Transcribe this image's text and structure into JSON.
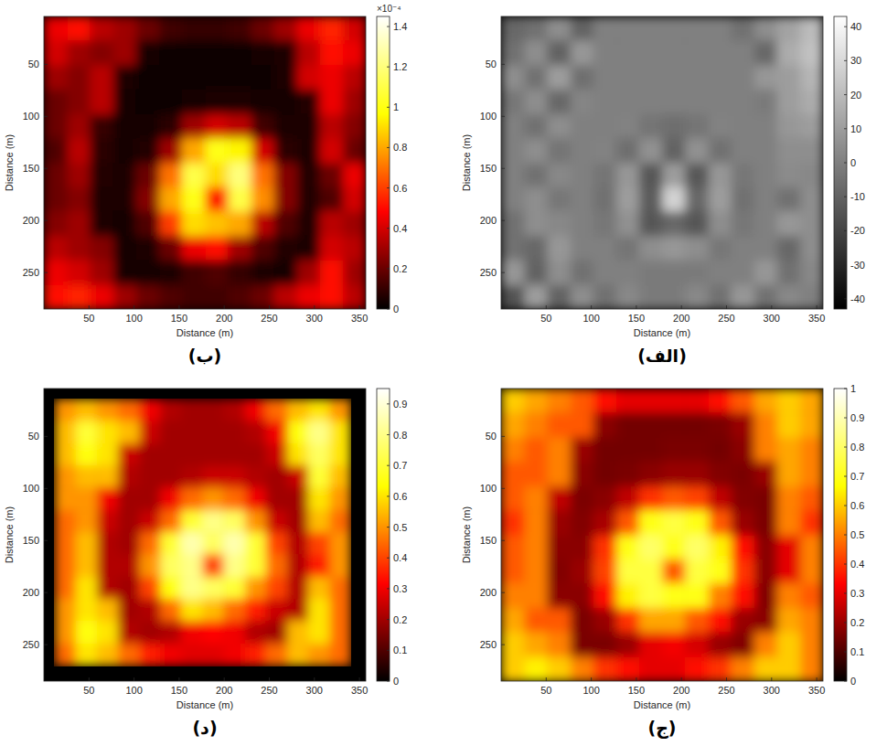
{
  "chart_data": [
    {
      "type": "heatmap",
      "title": "(الف)",
      "x_label": "Distance (m)",
      "y_label": "Distance (m)",
      "xlim": [
        0,
        357
      ],
      "ylim": [
        4,
        285
      ],
      "xticks": [
        50,
        100,
        150,
        200,
        250,
        300,
        350
      ],
      "yticks": [
        50,
        100,
        150,
        200,
        250
      ],
      "x_edges": [
        0,
        26,
        51,
        77,
        102,
        128,
        153,
        179,
        204,
        230,
        255,
        281,
        306,
        332,
        357
      ],
      "y_edges": [
        4,
        27,
        51,
        74,
        98,
        121,
        145,
        168,
        191,
        215,
        238,
        262,
        285
      ],
      "cells": [
        [
          -8,
          -5,
          5,
          -10,
          0,
          0,
          0,
          0,
          0,
          0,
          -5,
          5,
          12,
          20
        ],
        [
          -5,
          5,
          -10,
          8,
          0,
          0,
          0,
          0,
          0,
          0,
          0,
          -8,
          15,
          22
        ],
        [
          5,
          -5,
          10,
          -6,
          0,
          0,
          0,
          0,
          0,
          0,
          0,
          8,
          10,
          18
        ],
        [
          -3,
          5,
          -8,
          2,
          0,
          0,
          0,
          0,
          0,
          0,
          0,
          -2,
          10,
          15
        ],
        [
          0,
          -5,
          5,
          0,
          0,
          1,
          -4,
          -6,
          -4,
          1,
          0,
          0,
          8,
          10
        ],
        [
          0,
          5,
          -4,
          0,
          1,
          -6,
          6,
          -10,
          6,
          -5,
          0,
          0,
          5,
          5
        ],
        [
          0,
          -5,
          3,
          0,
          -4,
          8,
          -14,
          10,
          -14,
          8,
          -3,
          0,
          4,
          3
        ],
        [
          0,
          5,
          -3,
          0,
          -5,
          10,
          -12,
          28,
          -8,
          10,
          -5,
          0,
          -5,
          5
        ],
        [
          -5,
          5,
          3,
          0,
          -3,
          6,
          -14,
          -8,
          -14,
          5,
          -3,
          0,
          8,
          5
        ],
        [
          -5,
          -8,
          8,
          0,
          0,
          -4,
          5,
          8,
          5,
          -3,
          0,
          0,
          -8,
          5
        ],
        [
          8,
          -10,
          5,
          -5,
          0,
          0,
          -2,
          -2,
          -2,
          0,
          0,
          8,
          -5,
          3
        ],
        [
          -15,
          10,
          -10,
          5,
          -5,
          3,
          -2,
          -2,
          3,
          -5,
          8,
          -5,
          3,
          0
        ]
      ],
      "colorbar": {
        "range": [
          -43,
          43
        ],
        "ticks": [
          -40,
          -30,
          -20,
          -10,
          0,
          10,
          20,
          30,
          40
        ],
        "colors": [
          "#000000",
          "#ffffff"
        ]
      }
    },
    {
      "type": "heatmap",
      "title": "(ب)",
      "x_label": "Distance (m)",
      "y_label": "Distance (m)",
      "xlim": [
        0,
        357
      ],
      "ylim": [
        4,
        285
      ],
      "xticks": [
        50,
        100,
        150,
        200,
        250,
        300,
        350
      ],
      "yticks": [
        50,
        100,
        150,
        200,
        250
      ],
      "x_edges": [
        0,
        26,
        51,
        77,
        102,
        128,
        153,
        179,
        204,
        230,
        255,
        281,
        306,
        332,
        357
      ],
      "y_edges": [
        4,
        27,
        51,
        74,
        98,
        121,
        145,
        168,
        191,
        215,
        238,
        262,
        285
      ],
      "cells": [
        [
          0.45,
          0.5,
          0.35,
          0.3,
          0.2,
          0.12,
          0.1,
          0.1,
          0.12,
          0.2,
          0.3,
          0.45,
          0.55,
          0.4
        ],
        [
          0.4,
          0.3,
          0.25,
          0.3,
          0.04,
          0.03,
          0.03,
          0.03,
          0.03,
          0.04,
          0.05,
          0.35,
          0.5,
          0.45
        ],
        [
          0.3,
          0.25,
          0.35,
          0.05,
          0.03,
          0.03,
          0.03,
          0.03,
          0.03,
          0.03,
          0.05,
          0.4,
          0.45,
          0.35
        ],
        [
          0.2,
          0.25,
          0.35,
          0.04,
          0.03,
          0.03,
          0.04,
          0.05,
          0.05,
          0.04,
          0.04,
          0.06,
          0.45,
          0.3
        ],
        [
          0.2,
          0.3,
          0.1,
          0.04,
          0.04,
          0.08,
          0.3,
          0.4,
          0.35,
          0.12,
          0.05,
          0.05,
          0.35,
          0.25
        ],
        [
          0.15,
          0.35,
          0.08,
          0.04,
          0.06,
          0.3,
          0.8,
          1.0,
          0.95,
          0.4,
          0.08,
          0.05,
          0.4,
          0.2
        ],
        [
          0.2,
          0.3,
          0.06,
          0.05,
          0.2,
          0.7,
          1.1,
          0.9,
          1.2,
          0.7,
          0.25,
          0.06,
          0.2,
          0.45
        ],
        [
          0.2,
          0.25,
          0.05,
          0.05,
          0.25,
          0.8,
          1.0,
          0.5,
          1.1,
          0.75,
          0.25,
          0.06,
          0.15,
          0.4
        ],
        [
          0.25,
          0.3,
          0.05,
          0.04,
          0.15,
          0.6,
          0.9,
          0.85,
          0.8,
          0.35,
          0.15,
          0.05,
          0.35,
          0.3
        ],
        [
          0.35,
          0.3,
          0.25,
          0.04,
          0.05,
          0.2,
          0.45,
          0.5,
          0.3,
          0.15,
          0.06,
          0.05,
          0.4,
          0.35
        ],
        [
          0.45,
          0.4,
          0.3,
          0.04,
          0.04,
          0.05,
          0.12,
          0.15,
          0.1,
          0.05,
          0.04,
          0.3,
          0.5,
          0.3
        ],
        [
          0.5,
          0.55,
          0.45,
          0.3,
          0.2,
          0.15,
          0.12,
          0.12,
          0.15,
          0.2,
          0.35,
          0.45,
          0.5,
          0.35
        ]
      ],
      "colorbar": {
        "range": [
          0,
          1.45
        ],
        "ticks": [
          0,
          0.2,
          0.4,
          0.6,
          0.8,
          1,
          1.2,
          1.4
        ],
        "colors": [
          "#000000",
          "#ff0000",
          "#ffff00",
          "#ffffff"
        ],
        "multiplier": "×10⁻⁴"
      }
    },
    {
      "type": "heatmap",
      "title": "(ج)",
      "x_label": "Distance (m)",
      "y_label": "Distance (m)",
      "xlim": [
        0,
        357
      ],
      "ylim": [
        4,
        285
      ],
      "xticks": [
        50,
        100,
        150,
        200,
        250,
        300,
        350
      ],
      "yticks": [
        50,
        100,
        150,
        200,
        250
      ],
      "x_edges": [
        0,
        26,
        51,
        77,
        102,
        128,
        153,
        179,
        204,
        230,
        255,
        281,
        306,
        332,
        357
      ],
      "y_edges": [
        4,
        27,
        51,
        74,
        98,
        121,
        145,
        168,
        191,
        215,
        238,
        262,
        285
      ],
      "cells": [
        [
          0.6,
          0.55,
          0.5,
          0.45,
          0.35,
          0.3,
          0.3,
          0.3,
          0.3,
          0.35,
          0.45,
          0.55,
          0.6,
          0.55
        ],
        [
          0.55,
          0.5,
          0.45,
          0.45,
          0.18,
          0.15,
          0.15,
          0.15,
          0.15,
          0.16,
          0.2,
          0.5,
          0.6,
          0.55
        ],
        [
          0.5,
          0.45,
          0.5,
          0.2,
          0.15,
          0.15,
          0.15,
          0.16,
          0.16,
          0.15,
          0.18,
          0.5,
          0.55,
          0.5
        ],
        [
          0.45,
          0.45,
          0.5,
          0.18,
          0.15,
          0.16,
          0.18,
          0.2,
          0.2,
          0.17,
          0.16,
          0.2,
          0.55,
          0.5
        ],
        [
          0.45,
          0.5,
          0.25,
          0.16,
          0.18,
          0.25,
          0.4,
          0.45,
          0.42,
          0.25,
          0.17,
          0.16,
          0.5,
          0.45
        ],
        [
          0.4,
          0.5,
          0.2,
          0.17,
          0.22,
          0.45,
          0.7,
          0.75,
          0.7,
          0.45,
          0.2,
          0.16,
          0.5,
          0.4
        ],
        [
          0.45,
          0.5,
          0.18,
          0.18,
          0.4,
          0.7,
          0.8,
          0.7,
          0.8,
          0.65,
          0.35,
          0.18,
          0.3,
          0.5
        ],
        [
          0.45,
          0.5,
          0.17,
          0.2,
          0.42,
          0.75,
          0.75,
          0.45,
          0.75,
          0.7,
          0.4,
          0.18,
          0.3,
          0.5
        ],
        [
          0.5,
          0.5,
          0.18,
          0.18,
          0.35,
          0.65,
          0.75,
          0.7,
          0.7,
          0.5,
          0.35,
          0.17,
          0.5,
          0.45
        ],
        [
          0.55,
          0.45,
          0.45,
          0.16,
          0.2,
          0.4,
          0.55,
          0.55,
          0.45,
          0.35,
          0.2,
          0.18,
          0.55,
          0.5
        ],
        [
          0.6,
          0.55,
          0.5,
          0.16,
          0.16,
          0.2,
          0.3,
          0.32,
          0.28,
          0.2,
          0.17,
          0.5,
          0.6,
          0.5
        ],
        [
          0.6,
          0.65,
          0.6,
          0.5,
          0.4,
          0.35,
          0.3,
          0.3,
          0.35,
          0.4,
          0.5,
          0.6,
          0.6,
          0.5
        ]
      ],
      "colorbar": {
        "range": [
          0,
          1
        ],
        "ticks": [
          0,
          0.1,
          0.2,
          0.3,
          0.4,
          0.5,
          0.6,
          0.7,
          0.8,
          0.9,
          1
        ],
        "colors": [
          "#000000",
          "#ff0000",
          "#ffff00",
          "#ffffff"
        ]
      }
    },
    {
      "type": "heatmap",
      "title": "(د)",
      "x_label": "Distance (m)",
      "y_label": "Distance (m)",
      "xlim": [
        0,
        357
      ],
      "ylim": [
        4,
        285
      ],
      "xticks": [
        50,
        100,
        150,
        200,
        250,
        300,
        350
      ],
      "yticks": [
        50,
        100,
        150,
        200,
        250
      ],
      "x_edges": [
        12,
        35,
        59,
        82,
        106,
        129,
        152,
        176,
        199,
        223,
        246,
        270,
        293,
        317,
        340
      ],
      "y_edges": [
        14,
        35,
        57,
        78,
        99,
        121,
        142,
        163,
        185,
        206,
        227,
        249,
        270
      ],
      "cells": [
        [
          0.5,
          0.55,
          0.5,
          0.45,
          0.3,
          0.22,
          0.2,
          0.2,
          0.22,
          0.3,
          0.45,
          0.55,
          0.6,
          0.5
        ],
        [
          0.55,
          0.7,
          0.6,
          0.55,
          0.25,
          0.2,
          0.2,
          0.2,
          0.2,
          0.22,
          0.3,
          0.65,
          0.8,
          0.6
        ],
        [
          0.55,
          0.65,
          0.6,
          0.25,
          0.2,
          0.2,
          0.2,
          0.2,
          0.2,
          0.2,
          0.25,
          0.6,
          0.75,
          0.6
        ],
        [
          0.5,
          0.55,
          0.55,
          0.22,
          0.2,
          0.2,
          0.22,
          0.25,
          0.25,
          0.22,
          0.2,
          0.25,
          0.7,
          0.55
        ],
        [
          0.5,
          0.5,
          0.3,
          0.2,
          0.2,
          0.3,
          0.45,
          0.5,
          0.45,
          0.3,
          0.2,
          0.2,
          0.6,
          0.5
        ],
        [
          0.45,
          0.5,
          0.25,
          0.2,
          0.25,
          0.45,
          0.7,
          0.8,
          0.75,
          0.5,
          0.25,
          0.2,
          0.55,
          0.45
        ],
        [
          0.45,
          0.55,
          0.22,
          0.2,
          0.45,
          0.7,
          0.85,
          0.75,
          0.85,
          0.7,
          0.4,
          0.22,
          0.4,
          0.5
        ],
        [
          0.45,
          0.55,
          0.22,
          0.22,
          0.5,
          0.75,
          0.8,
          0.4,
          0.8,
          0.7,
          0.45,
          0.22,
          0.35,
          0.5
        ],
        [
          0.45,
          0.6,
          0.22,
          0.2,
          0.4,
          0.65,
          0.8,
          0.75,
          0.7,
          0.5,
          0.4,
          0.22,
          0.55,
          0.45
        ],
        [
          0.5,
          0.6,
          0.55,
          0.2,
          0.22,
          0.45,
          0.6,
          0.55,
          0.45,
          0.35,
          0.25,
          0.22,
          0.6,
          0.45
        ],
        [
          0.5,
          0.65,
          0.6,
          0.22,
          0.2,
          0.22,
          0.3,
          0.32,
          0.3,
          0.22,
          0.2,
          0.55,
          0.6,
          0.45
        ],
        [
          0.45,
          0.6,
          0.55,
          0.45,
          0.35,
          0.3,
          0.28,
          0.28,
          0.3,
          0.35,
          0.45,
          0.55,
          0.5,
          0.45
        ]
      ],
      "colorbar": {
        "range": [
          0,
          0.95
        ],
        "ticks": [
          0,
          0.1,
          0.2,
          0.3,
          0.4,
          0.5,
          0.6,
          0.7,
          0.8,
          0.9
        ],
        "colors": [
          "#000000",
          "#ff0000",
          "#ffff00",
          "#ffffff"
        ]
      }
    }
  ]
}
